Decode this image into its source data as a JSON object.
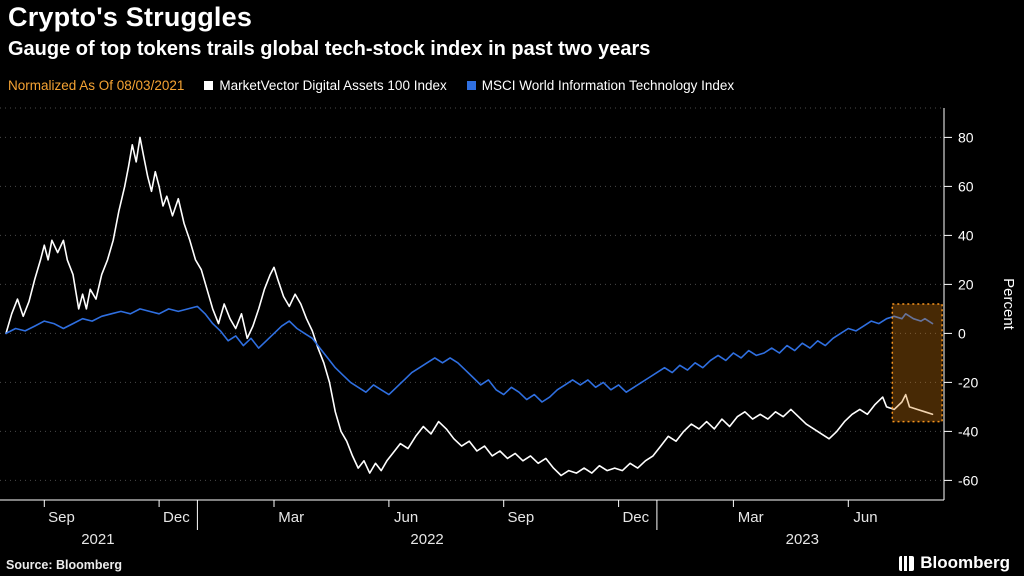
{
  "header": {
    "title": "Crypto's Struggles",
    "subtitle": "Gauge of top tokens trails global tech-stock index in past two years"
  },
  "legend": {
    "note": "Normalized As Of 08/03/2021",
    "note_color": "#f5a333"
  },
  "footer": {
    "source": "Source: Bloomberg",
    "brand": "Bloomberg"
  },
  "chart_data": {
    "type": "line",
    "title": "Crypto's Struggles",
    "subtitle": "Gauge of top tokens trails global tech-stock index in past two years",
    "ylabel": "Percent",
    "ylim": [
      -68,
      92
    ],
    "yticks": [
      80,
      60,
      40,
      20,
      0,
      -20,
      -40,
      -60
    ],
    "xlim": [
      0,
      24.5
    ],
    "x_unit": "months since 2021-08-03",
    "grid": "horizontal-dotted",
    "legend_position": "top",
    "month_ticks": [
      {
        "t": 1,
        "label": "Sep"
      },
      {
        "t": 4,
        "label": "Dec"
      },
      {
        "t": 7,
        "label": "Mar"
      },
      {
        "t": 10,
        "label": "Jun"
      },
      {
        "t": 13,
        "label": "Sep"
      },
      {
        "t": 16,
        "label": "Dec"
      },
      {
        "t": 19,
        "label": "Mar"
      },
      {
        "t": 22,
        "label": "Jun"
      }
    ],
    "year_dividers": [
      5,
      17
    ],
    "year_labels": [
      {
        "t": 2.4,
        "label": "2021"
      },
      {
        "t": 11,
        "label": "2022"
      },
      {
        "t": 20.8,
        "label": "2023"
      }
    ],
    "highlight_box": {
      "t0": 23.15,
      "t1": 24.45,
      "y0": -36,
      "y1": 12,
      "fill": "rgba(217,125,14,0.33)",
      "stroke": "#f7941d"
    },
    "series": [
      {
        "name": "MarketVector Digital Assets 100 Index",
        "color": "#ffffff",
        "points": [
          [
            0,
            0
          ],
          [
            0.15,
            8
          ],
          [
            0.3,
            14
          ],
          [
            0.45,
            7
          ],
          [
            0.6,
            13
          ],
          [
            0.75,
            22
          ],
          [
            0.9,
            30
          ],
          [
            1,
            36
          ],
          [
            1.1,
            30
          ],
          [
            1.2,
            38
          ],
          [
            1.35,
            33
          ],
          [
            1.5,
            38
          ],
          [
            1.6,
            30
          ],
          [
            1.75,
            24
          ],
          [
            1.9,
            10
          ],
          [
            2,
            16
          ],
          [
            2.1,
            10
          ],
          [
            2.2,
            18
          ],
          [
            2.35,
            14
          ],
          [
            2.5,
            24
          ],
          [
            2.65,
            30
          ],
          [
            2.8,
            38
          ],
          [
            2.95,
            50
          ],
          [
            3.1,
            60
          ],
          [
            3.2,
            68
          ],
          [
            3.3,
            77
          ],
          [
            3.4,
            70
          ],
          [
            3.5,
            80
          ],
          [
            3.6,
            72
          ],
          [
            3.7,
            64
          ],
          [
            3.8,
            58
          ],
          [
            3.9,
            66
          ],
          [
            4,
            60
          ],
          [
            4.1,
            52
          ],
          [
            4.2,
            56
          ],
          [
            4.35,
            48
          ],
          [
            4.5,
            55
          ],
          [
            4.65,
            45
          ],
          [
            4.8,
            38
          ],
          [
            4.95,
            30
          ],
          [
            5.1,
            26
          ],
          [
            5.25,
            18
          ],
          [
            5.4,
            10
          ],
          [
            5.55,
            4
          ],
          [
            5.7,
            12
          ],
          [
            5.85,
            6
          ],
          [
            6,
            2
          ],
          [
            6.15,
            8
          ],
          [
            6.3,
            -2
          ],
          [
            6.45,
            3
          ],
          [
            6.6,
            10
          ],
          [
            6.75,
            18
          ],
          [
            6.9,
            24
          ],
          [
            7,
            27
          ],
          [
            7.1,
            22
          ],
          [
            7.25,
            15
          ],
          [
            7.4,
            11
          ],
          [
            7.55,
            16
          ],
          [
            7.7,
            12
          ],
          [
            7.85,
            6
          ],
          [
            8,
            1
          ],
          [
            8.15,
            -6
          ],
          [
            8.3,
            -12
          ],
          [
            8.45,
            -20
          ],
          [
            8.6,
            -32
          ],
          [
            8.75,
            -40
          ],
          [
            8.9,
            -44
          ],
          [
            9.05,
            -50
          ],
          [
            9.2,
            -55
          ],
          [
            9.35,
            -52
          ],
          [
            9.5,
            -57
          ],
          [
            9.65,
            -53
          ],
          [
            9.8,
            -56
          ],
          [
            9.95,
            -52
          ],
          [
            10.1,
            -49
          ],
          [
            10.3,
            -45
          ],
          [
            10.5,
            -47
          ],
          [
            10.7,
            -42
          ],
          [
            10.9,
            -38
          ],
          [
            11.1,
            -41
          ],
          [
            11.3,
            -36
          ],
          [
            11.5,
            -39
          ],
          [
            11.7,
            -43
          ],
          [
            11.9,
            -46
          ],
          [
            12.1,
            -44
          ],
          [
            12.3,
            -48
          ],
          [
            12.5,
            -46
          ],
          [
            12.7,
            -50
          ],
          [
            12.9,
            -48
          ],
          [
            13.1,
            -51
          ],
          [
            13.3,
            -49
          ],
          [
            13.5,
            -52
          ],
          [
            13.7,
            -50
          ],
          [
            13.9,
            -53
          ],
          [
            14.1,
            -51
          ],
          [
            14.3,
            -55
          ],
          [
            14.5,
            -58
          ],
          [
            14.7,
            -56
          ],
          [
            14.9,
            -57
          ],
          [
            15.1,
            -55
          ],
          [
            15.3,
            -57
          ],
          [
            15.5,
            -54
          ],
          [
            15.7,
            -56
          ],
          [
            15.9,
            -55
          ],
          [
            16.1,
            -56
          ],
          [
            16.3,
            -53
          ],
          [
            16.5,
            -55
          ],
          [
            16.7,
            -52
          ],
          [
            16.9,
            -50
          ],
          [
            17.1,
            -46
          ],
          [
            17.3,
            -42
          ],
          [
            17.5,
            -44
          ],
          [
            17.7,
            -40
          ],
          [
            17.9,
            -37
          ],
          [
            18.1,
            -39
          ],
          [
            18.3,
            -36
          ],
          [
            18.5,
            -39
          ],
          [
            18.7,
            -35
          ],
          [
            18.9,
            -38
          ],
          [
            19.1,
            -34
          ],
          [
            19.3,
            -32
          ],
          [
            19.5,
            -35
          ],
          [
            19.7,
            -33
          ],
          [
            19.9,
            -35
          ],
          [
            20.1,
            -32
          ],
          [
            20.3,
            -34
          ],
          [
            20.5,
            -31
          ],
          [
            20.7,
            -34
          ],
          [
            20.9,
            -37
          ],
          [
            21.1,
            -39
          ],
          [
            21.3,
            -41
          ],
          [
            21.5,
            -43
          ],
          [
            21.7,
            -40
          ],
          [
            21.9,
            -36
          ],
          [
            22.1,
            -33
          ],
          [
            22.3,
            -31
          ],
          [
            22.5,
            -33
          ],
          [
            22.7,
            -29
          ],
          [
            22.9,
            -26
          ],
          [
            23,
            -30
          ],
          [
            23.2,
            -31
          ],
          [
            23.4,
            -28
          ],
          [
            23.5,
            -25
          ],
          [
            23.6,
            -30
          ],
          [
            23.8,
            -31
          ],
          [
            24,
            -32
          ],
          [
            24.2,
            -33
          ]
        ]
      },
      {
        "name": "MSCI World Information Technology Index",
        "color": "#2f6fe0",
        "points": [
          [
            0,
            0
          ],
          [
            0.25,
            2
          ],
          [
            0.5,
            1
          ],
          [
            0.75,
            3
          ],
          [
            1,
            5
          ],
          [
            1.25,
            4
          ],
          [
            1.5,
            2
          ],
          [
            1.75,
            4
          ],
          [
            2,
            6
          ],
          [
            2.25,
            5
          ],
          [
            2.5,
            7
          ],
          [
            2.75,
            8
          ],
          [
            3,
            9
          ],
          [
            3.25,
            8
          ],
          [
            3.5,
            10
          ],
          [
            3.75,
            9
          ],
          [
            4,
            8
          ],
          [
            4.25,
            10
          ],
          [
            4.5,
            9
          ],
          [
            4.75,
            10
          ],
          [
            5,
            11
          ],
          [
            5.2,
            8
          ],
          [
            5.4,
            4
          ],
          [
            5.6,
            1
          ],
          [
            5.8,
            -3
          ],
          [
            6,
            -1
          ],
          [
            6.2,
            -5
          ],
          [
            6.4,
            -2
          ],
          [
            6.6,
            -6
          ],
          [
            6.8,
            -3
          ],
          [
            7,
            0
          ],
          [
            7.2,
            3
          ],
          [
            7.4,
            5
          ],
          [
            7.6,
            2
          ],
          [
            7.8,
            0
          ],
          [
            8,
            -2
          ],
          [
            8.2,
            -6
          ],
          [
            8.4,
            -10
          ],
          [
            8.6,
            -14
          ],
          [
            8.8,
            -17
          ],
          [
            9,
            -20
          ],
          [
            9.2,
            -22
          ],
          [
            9.4,
            -24
          ],
          [
            9.6,
            -21
          ],
          [
            9.8,
            -23
          ],
          [
            10,
            -25
          ],
          [
            10.2,
            -22
          ],
          [
            10.4,
            -19
          ],
          [
            10.6,
            -16
          ],
          [
            10.8,
            -14
          ],
          [
            11,
            -12
          ],
          [
            11.2,
            -10
          ],
          [
            11.4,
            -12
          ],
          [
            11.6,
            -10
          ],
          [
            11.8,
            -12
          ],
          [
            12,
            -15
          ],
          [
            12.2,
            -18
          ],
          [
            12.4,
            -21
          ],
          [
            12.6,
            -19
          ],
          [
            12.8,
            -23
          ],
          [
            13,
            -25
          ],
          [
            13.2,
            -22
          ],
          [
            13.4,
            -24
          ],
          [
            13.6,
            -27
          ],
          [
            13.8,
            -25
          ],
          [
            14,
            -28
          ],
          [
            14.2,
            -26
          ],
          [
            14.4,
            -23
          ],
          [
            14.6,
            -21
          ],
          [
            14.8,
            -19
          ],
          [
            15,
            -21
          ],
          [
            15.2,
            -19
          ],
          [
            15.4,
            -22
          ],
          [
            15.6,
            -20
          ],
          [
            15.8,
            -23
          ],
          [
            16,
            -21
          ],
          [
            16.2,
            -24
          ],
          [
            16.4,
            -22
          ],
          [
            16.6,
            -20
          ],
          [
            16.8,
            -18
          ],
          [
            17,
            -16
          ],
          [
            17.2,
            -14
          ],
          [
            17.4,
            -16
          ],
          [
            17.6,
            -13
          ],
          [
            17.8,
            -15
          ],
          [
            18,
            -12
          ],
          [
            18.2,
            -14
          ],
          [
            18.4,
            -11
          ],
          [
            18.6,
            -9
          ],
          [
            18.8,
            -11
          ],
          [
            19,
            -8
          ],
          [
            19.2,
            -10
          ],
          [
            19.4,
            -7
          ],
          [
            19.6,
            -9
          ],
          [
            19.8,
            -8
          ],
          [
            20,
            -6
          ],
          [
            20.2,
            -8
          ],
          [
            20.4,
            -5
          ],
          [
            20.6,
            -7
          ],
          [
            20.8,
            -4
          ],
          [
            21,
            -6
          ],
          [
            21.2,
            -3
          ],
          [
            21.4,
            -5
          ],
          [
            21.6,
            -2
          ],
          [
            21.8,
            0
          ],
          [
            22,
            2
          ],
          [
            22.2,
            1
          ],
          [
            22.4,
            3
          ],
          [
            22.6,
            5
          ],
          [
            22.8,
            4
          ],
          [
            23,
            6
          ],
          [
            23.2,
            7
          ],
          [
            23.4,
            6
          ],
          [
            23.5,
            8
          ],
          [
            23.7,
            6
          ],
          [
            23.9,
            5
          ],
          [
            24,
            6
          ],
          [
            24.2,
            4
          ]
        ]
      }
    ]
  }
}
